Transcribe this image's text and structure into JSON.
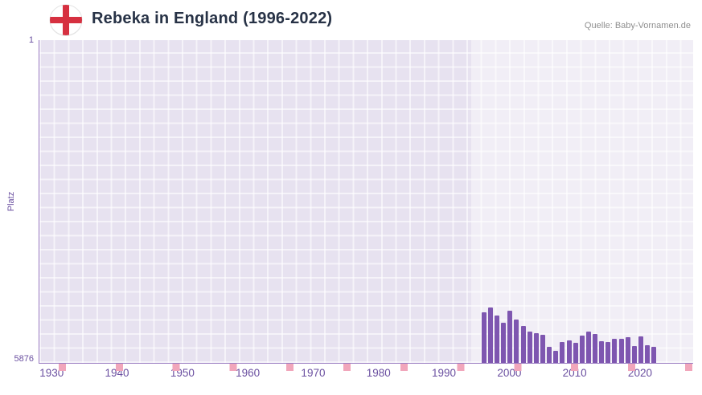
{
  "header": {
    "title": "Rebeka in England (1996-2022)",
    "source": "Quelle: Baby-Vornamen.de",
    "flag_icon": "england-flag-icon"
  },
  "colors": {
    "bar": "#7e56b0",
    "axis_text": "#6a4fa0",
    "grid_base": "#e7e2f0",
    "highlight_overlay": "rgba(255,255,255,0.42)",
    "pink_tick": "#f1a6bb",
    "title_text": "#273246",
    "source_text": "#8f8f8f",
    "flag_cross_red": "#d63040"
  },
  "chart_data": {
    "type": "bar",
    "title": "Rebeka in England (1996-2022)",
    "xlabel": "",
    "ylabel": "Platz",
    "y_axis_inverted": true,
    "ylim": [
      1,
      5876
    ],
    "y_ticks": {
      "top": "1",
      "bottom": "5876"
    },
    "x_range": [
      1928,
      2028
    ],
    "x_tick_years": [
      1930,
      1940,
      1950,
      1960,
      1970,
      1980,
      1990,
      2000,
      2010,
      2020
    ],
    "highlight_range": [
      1994,
      2028
    ],
    "grid": true,
    "legend_position": "none",
    "bar_color": "#7e56b0",
    "years": [
      1996,
      1997,
      1998,
      1999,
      2000,
      2001,
      2002,
      2003,
      2004,
      2005,
      2006,
      2007,
      2008,
      2009,
      2010,
      2011,
      2012,
      2013,
      2014,
      2015,
      2016,
      2017,
      2018,
      2019,
      2020,
      2021,
      2022
    ],
    "values": [
      4960,
      4870,
      5010,
      5150,
      4930,
      5080,
      5210,
      5300,
      5330,
      5370,
      5590,
      5650,
      5490,
      5470,
      5510,
      5380,
      5310,
      5350,
      5480,
      5500,
      5430,
      5440,
      5410,
      5570,
      5400,
      5560,
      5580
    ]
  }
}
